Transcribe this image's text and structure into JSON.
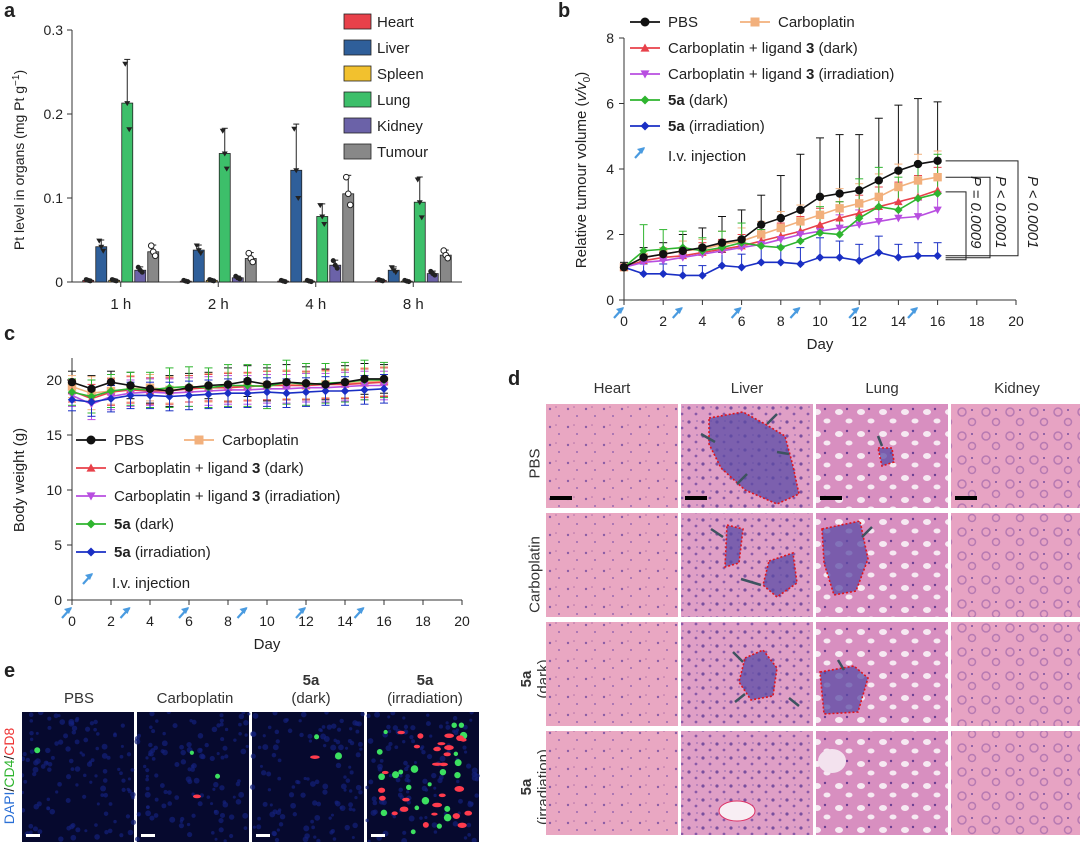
{
  "panels": {
    "a": "a",
    "b": "b",
    "c": "c",
    "d": "d",
    "e": "e"
  },
  "colors": {
    "heart": "#e8414a",
    "liver": "#2f5f9a",
    "spleen": "#f2c12e",
    "lung": "#3dbf6a",
    "kidney": "#6b62a8",
    "tumour": "#888888",
    "pbs": "#111111",
    "carbo": "#f2b07c",
    "dark3": "#e8414a",
    "irr3": "#b84ee0",
    "dark5a": "#2fb52f",
    "irr5a": "#1a2fc4",
    "arrow": "#4a9be0"
  },
  "chart_data": [
    {
      "type": "bar",
      "panel": "a",
      "ylabel": "Pt level in organs (mg Pt g",
      "ylabel_sup": "−1",
      "ylabel_end": ")",
      "ylim": [
        0,
        0.3
      ],
      "yticks": [
        "0",
        "0.1",
        "0.2",
        "0.3"
      ],
      "categories": [
        "1 h",
        "2 h",
        "4 h",
        "8 h"
      ],
      "series": [
        {
          "name": "Heart",
          "key": "heart",
          "values": [
            0.002,
            0.001,
            0.001,
            0.002
          ],
          "err": [
            0.001,
            0.001,
            0.001,
            0.001
          ]
        },
        {
          "name": "Liver",
          "key": "liver",
          "values": [
            0.042,
            0.038,
            0.133,
            0.014
          ],
          "err": [
            0.008,
            0.006,
            0.055,
            0.004
          ]
        },
        {
          "name": "Spleen",
          "key": "spleen",
          "values": [
            0.002,
            0.002,
            0.001,
            0.001
          ],
          "err": [
            0.001,
            0.001,
            0.001,
            0.001
          ]
        },
        {
          "name": "Lung",
          "key": "lung",
          "values": [
            0.213,
            0.153,
            0.078,
            0.095
          ],
          "err": [
            0.052,
            0.03,
            0.015,
            0.03
          ]
        },
        {
          "name": "Kidney",
          "key": "kidney",
          "values": [
            0.014,
            0.005,
            0.02,
            0.01
          ],
          "err": [
            0.004,
            0.002,
            0.006,
            0.003
          ]
        },
        {
          "name": "Tumour",
          "key": "tumour",
          "values": [
            0.036,
            0.028,
            0.105,
            0.032
          ],
          "err": [
            0.008,
            0.007,
            0.022,
            0.006
          ]
        }
      ]
    },
    {
      "type": "line",
      "panel": "b",
      "xlabel": "Day",
      "ylabel": "Relative tumour volume (",
      "ylabel_var": "v/v",
      "ylabel_sub": "0",
      "ylabel_end": ")",
      "xlim": [
        0,
        20
      ],
      "ylim": [
        0,
        8
      ],
      "xticks": [
        "0",
        "2",
        "4",
        "6",
        "8",
        "10",
        "12",
        "14",
        "16",
        "18",
        "20"
      ],
      "yticks": [
        "0",
        "2",
        "4",
        "6",
        "8"
      ],
      "injection_days": [
        0,
        3,
        6,
        9,
        12,
        15
      ],
      "series": [
        {
          "name_pre": "PBS",
          "name_bold": "",
          "name_post": "",
          "key": "pbs",
          "marker": "circle",
          "x": [
            0,
            1,
            2,
            3,
            4,
            5,
            6,
            7,
            8,
            9,
            10,
            11,
            12,
            13,
            14,
            15,
            16
          ],
          "y": [
            1.0,
            1.3,
            1.4,
            1.5,
            1.6,
            1.75,
            1.85,
            2.3,
            2.5,
            2.75,
            3.15,
            3.25,
            3.35,
            3.65,
            3.95,
            4.15,
            4.25
          ],
          "err": [
            0.15,
            0.3,
            0.35,
            0.5,
            0.6,
            0.8,
            0.9,
            0.9,
            1.3,
            1.7,
            1.8,
            1.8,
            1.7,
            1.9,
            2.0,
            2.0,
            1.8
          ]
        },
        {
          "name_pre": "Carboplatin",
          "name_bold": "",
          "name_post": "",
          "key": "carbo",
          "marker": "square",
          "x": [
            0,
            1,
            2,
            3,
            4,
            5,
            6,
            7,
            8,
            9,
            10,
            11,
            12,
            13,
            14,
            15,
            16
          ],
          "y": [
            1.0,
            1.3,
            1.4,
            1.5,
            1.55,
            1.7,
            1.8,
            2.0,
            2.2,
            2.4,
            2.6,
            2.8,
            2.95,
            3.15,
            3.45,
            3.65,
            3.75
          ],
          "err": [
            0.1,
            0.2,
            0.2,
            0.3,
            0.3,
            0.4,
            0.4,
            0.4,
            0.5,
            0.5,
            0.6,
            0.6,
            0.6,
            0.7,
            0.7,
            0.8,
            0.8
          ]
        },
        {
          "name_pre": "Carboplatin + ligand ",
          "name_bold": "3",
          "name_post": " (dark)",
          "key": "dark3",
          "marker": "triangle-up",
          "x": [
            0,
            1,
            2,
            3,
            4,
            5,
            6,
            7,
            8,
            9,
            10,
            11,
            12,
            13,
            14,
            15,
            16
          ],
          "y": [
            1.0,
            1.2,
            1.3,
            1.35,
            1.45,
            1.55,
            1.65,
            1.8,
            1.95,
            2.1,
            2.3,
            2.5,
            2.65,
            2.85,
            3.0,
            3.15,
            3.35
          ],
          "err": [
            0.1,
            0.2,
            0.2,
            0.25,
            0.3,
            0.3,
            0.35,
            0.35,
            0.4,
            0.45,
            0.5,
            0.5,
            0.55,
            0.6,
            0.6,
            0.65,
            0.7
          ]
        },
        {
          "name_pre": "Carboplatin + ligand ",
          "name_bold": "3",
          "name_post": " (irradiation)",
          "key": "irr3",
          "marker": "triangle-down",
          "x": [
            0,
            1,
            2,
            3,
            4,
            5,
            6,
            7,
            8,
            9,
            10,
            11,
            12,
            13,
            14,
            15,
            16
          ],
          "y": [
            1.0,
            1.15,
            1.2,
            1.3,
            1.4,
            1.5,
            1.6,
            1.7,
            1.85,
            2.0,
            2.1,
            2.2,
            2.3,
            2.4,
            2.5,
            2.55,
            2.75
          ],
          "err": [
            0.1,
            0.15,
            0.2,
            0.2,
            0.25,
            0.3,
            0.3,
            0.35,
            0.35,
            0.4,
            0.4,
            0.4,
            0.45,
            0.45,
            0.5,
            0.5,
            0.55
          ]
        },
        {
          "name_pre": "",
          "name_bold": "5a",
          "name_post": " (dark)",
          "key": "dark5a",
          "marker": "diamond",
          "x": [
            0,
            1,
            2,
            3,
            4,
            5,
            6,
            7,
            8,
            9,
            10,
            11,
            12,
            13,
            14,
            15,
            16
          ],
          "y": [
            1.0,
            1.5,
            1.55,
            1.6,
            1.5,
            1.6,
            1.75,
            1.65,
            1.6,
            1.8,
            2.05,
            2.0,
            2.5,
            2.85,
            2.75,
            3.1,
            3.25
          ],
          "err": [
            0.1,
            0.8,
            0.6,
            0.5,
            0.4,
            0.5,
            0.6,
            0.5,
            0.5,
            0.6,
            0.8,
            1.0,
            1.2,
            1.2,
            1.0,
            1.1,
            1.2
          ]
        },
        {
          "name_pre": "",
          "name_bold": "5a",
          "name_post": " (irradiation)",
          "key": "irr5a",
          "marker": "diamond",
          "x": [
            0,
            1,
            2,
            3,
            4,
            5,
            6,
            7,
            8,
            9,
            10,
            11,
            12,
            13,
            14,
            15,
            16
          ],
          "y": [
            1.0,
            0.8,
            0.8,
            0.75,
            0.75,
            1.05,
            1.0,
            1.15,
            1.15,
            1.1,
            1.3,
            1.3,
            1.2,
            1.45,
            1.3,
            1.35,
            1.35
          ],
          "err": [
            0.1,
            0.3,
            0.3,
            0.3,
            0.3,
            0.4,
            0.4,
            0.5,
            0.5,
            0.5,
            0.6,
            0.5,
            0.5,
            0.5,
            0.4,
            0.4,
            0.4
          ]
        }
      ],
      "injection_label": "I.v. injection",
      "pvalues": [
        "P = 0.0009",
        "P < 0.0001",
        "P < 0.0001"
      ]
    },
    {
      "type": "line",
      "panel": "c",
      "xlabel": "Day",
      "ylabel": "Body weight (g)",
      "xlim": [
        0,
        20
      ],
      "ylim": [
        0,
        22
      ],
      "xticks": [
        "0",
        "2",
        "4",
        "6",
        "8",
        "10",
        "12",
        "14",
        "16",
        "18",
        "20"
      ],
      "yticks": [
        "0",
        "5",
        "10",
        "15",
        "20"
      ],
      "injection_days": [
        0,
        3,
        6,
        9,
        12,
        15
      ],
      "series": [
        {
          "key": "pbs",
          "marker": "circle",
          "x": [
            0,
            1,
            2,
            3,
            4,
            5,
            6,
            7,
            8,
            9,
            10,
            11,
            12,
            13,
            14,
            15,
            16
          ],
          "y": [
            19.8,
            19.2,
            19.8,
            19.5,
            19.2,
            19.0,
            19.3,
            19.5,
            19.6,
            19.9,
            19.6,
            19.8,
            19.7,
            19.6,
            19.8,
            20.1,
            20.1
          ],
          "err": [
            1.0,
            1.2,
            1.0,
            1.2,
            1.3,
            1.4,
            1.3,
            1.2,
            1.5,
            1.4,
            1.5,
            1.6,
            1.5,
            1.4,
            1.5,
            1.4,
            1.3
          ]
        },
        {
          "key": "carbo",
          "marker": "square",
          "x": [
            0,
            1,
            2,
            3,
            4,
            5,
            6,
            7,
            8,
            9,
            10,
            11,
            12,
            13,
            14,
            15,
            16
          ],
          "y": [
            19.4,
            18.8,
            19.0,
            19.2,
            19.3,
            19.1,
            19.2,
            19.3,
            19.4,
            19.4,
            19.5,
            19.6,
            19.5,
            19.6,
            19.7,
            19.8,
            19.9
          ],
          "err": [
            1.0,
            1.5,
            1.2,
            1.2,
            1.2,
            1.2,
            1.2,
            1.3,
            1.3,
            1.2,
            1.3,
            1.3,
            1.2,
            1.2,
            1.3,
            1.3,
            1.3
          ]
        },
        {
          "key": "dark3",
          "marker": "triangle-up",
          "x": [
            0,
            1,
            2,
            3,
            4,
            5,
            6,
            7,
            8,
            9,
            10,
            11,
            12,
            13,
            14,
            15,
            16
          ],
          "y": [
            19.0,
            18.3,
            18.9,
            19.1,
            19.0,
            19.0,
            19.2,
            19.3,
            19.3,
            19.4,
            19.5,
            19.5,
            19.5,
            19.6,
            19.6,
            19.7,
            19.8
          ],
          "err": [
            1.0,
            1.3,
            1.2,
            1.2,
            1.2,
            1.2,
            1.2,
            1.2,
            1.3,
            1.3,
            1.3,
            1.3,
            1.3,
            1.3,
            1.3,
            1.3,
            1.3
          ]
        },
        {
          "key": "irr3",
          "marker": "triangle-down",
          "x": [
            0,
            1,
            2,
            3,
            4,
            5,
            6,
            7,
            8,
            9,
            10,
            11,
            12,
            13,
            14,
            15,
            16
          ],
          "y": [
            18.6,
            17.8,
            18.5,
            18.8,
            18.9,
            18.8,
            18.9,
            19.0,
            19.1,
            19.1,
            19.2,
            19.2,
            19.3,
            19.3,
            19.4,
            19.5,
            19.5
          ],
          "err": [
            1.0,
            1.4,
            1.2,
            1.2,
            1.2,
            1.3,
            1.3,
            1.3,
            1.3,
            1.3,
            1.3,
            1.3,
            1.3,
            1.3,
            1.3,
            1.3,
            1.3
          ]
        },
        {
          "key": "dark5a",
          "marker": "diamond",
          "x": [
            0,
            1,
            2,
            3,
            4,
            5,
            6,
            7,
            8,
            9,
            10,
            11,
            12,
            13,
            14,
            15,
            16
          ],
          "y": [
            18.9,
            18.5,
            19.0,
            19.2,
            19.1,
            19.3,
            19.4,
            19.3,
            19.5,
            19.5,
            19.4,
            19.8,
            19.6,
            19.7,
            19.8,
            20.0,
            20.0
          ],
          "err": [
            1.2,
            1.5,
            1.5,
            1.5,
            1.6,
            1.8,
            1.8,
            1.8,
            1.9,
            1.9,
            2.0,
            2.0,
            1.9,
            1.8,
            1.8,
            1.8,
            1.6
          ]
        },
        {
          "key": "irr5a",
          "marker": "diamond",
          "x": [
            0,
            1,
            2,
            3,
            4,
            5,
            6,
            7,
            8,
            9,
            10,
            11,
            12,
            13,
            14,
            15,
            16
          ],
          "y": [
            18.2,
            18.0,
            18.3,
            18.6,
            18.6,
            18.5,
            18.6,
            18.7,
            18.8,
            18.8,
            18.9,
            18.8,
            18.9,
            19.0,
            19.0,
            19.1,
            19.2
          ],
          "err": [
            1.0,
            1.3,
            1.2,
            1.2,
            1.2,
            1.3,
            1.3,
            1.3,
            1.3,
            1.3,
            1.3,
            1.3,
            1.3,
            1.3,
            1.3,
            1.3,
            1.3
          ]
        }
      ],
      "injection_label": "I.v. injection"
    }
  ],
  "histology": {
    "columns": [
      "Heart",
      "Liver",
      "Lung",
      "Kidney"
    ],
    "rows": [
      {
        "bold": "",
        "label": "PBS"
      },
      {
        "bold": "",
        "label": "Carboplatin"
      },
      {
        "bold": "5a",
        "label": "(dark)"
      },
      {
        "bold": "5a",
        "label": "(irradiation)"
      }
    ]
  },
  "fluorescence": {
    "channel_label": [
      "DAPI",
      "/",
      "CD4",
      "/",
      "CD8"
    ],
    "columns": [
      {
        "bold": "",
        "label": "PBS"
      },
      {
        "bold": "",
        "label": "Carboplatin"
      },
      {
        "bold": "5a",
        "label": "(dark)"
      },
      {
        "bold": "5a",
        "label": "(irradiation)"
      }
    ]
  }
}
